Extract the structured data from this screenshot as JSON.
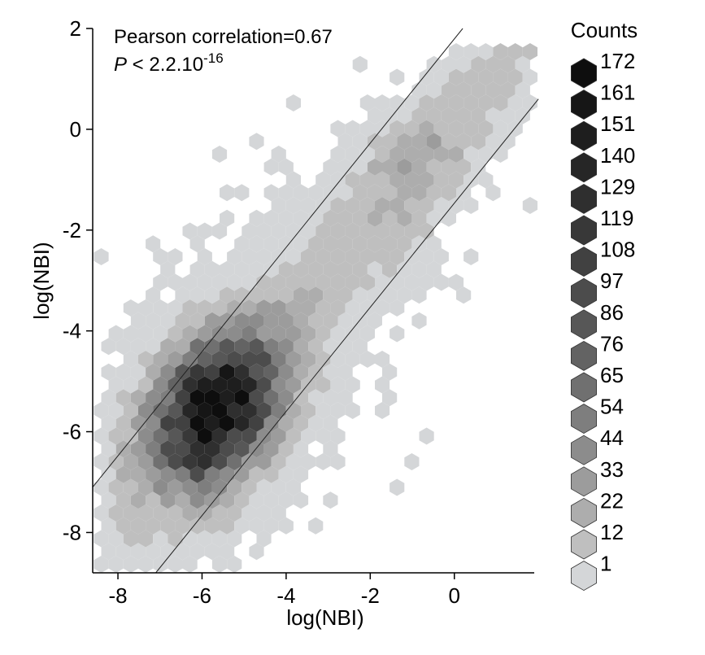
{
  "chart_data": {
    "type": "hexbin",
    "xlabel": "log(NBI)",
    "ylabel": "log(NBI)",
    "xlim": [
      -8.6,
      1.9
    ],
    "ylim": [
      -8.8,
      2.0
    ],
    "x_ticks": [
      -8,
      -6,
      -4,
      -2,
      0
    ],
    "y_ticks": [
      2,
      0,
      -2,
      -4,
      -6,
      -8
    ],
    "annotation": {
      "line1": "Pearson correlation=0.67",
      "line2_prefix": "P",
      "line2_text": " < 2.2.10",
      "line2_exp": "-16"
    },
    "correlation": 0.67,
    "reference_lines": [
      {
        "x": [
          -8.6,
          0.2
        ],
        "y": [
          -7.1,
          2.0
        ]
      },
      {
        "x": [
          -7.1,
          2.0
        ],
        "y": [
          -8.8,
          0.6
        ]
      }
    ],
    "legend": {
      "title": "Counts",
      "levels": [
        "172",
        "161",
        "151",
        "140",
        "129",
        "119",
        "108",
        "97",
        "86",
        "76",
        "65",
        "54",
        "44",
        "33",
        "22",
        "12",
        "1"
      ],
      "colors": [
        "#0e0e0e",
        "#161616",
        "#1e1e1e",
        "#262626",
        "#2f2f2f",
        "#383838",
        "#414141",
        "#4c4c4c",
        "#575757",
        "#636363",
        "#707070",
        "#7e7e7e",
        "#8c8c8c",
        "#9c9c9c",
        "#adadad",
        "#bfbfbf",
        "#d4d6d8"
      ]
    },
    "density_peak": {
      "x": -5.7,
      "y": -5.6,
      "count": 172
    }
  }
}
